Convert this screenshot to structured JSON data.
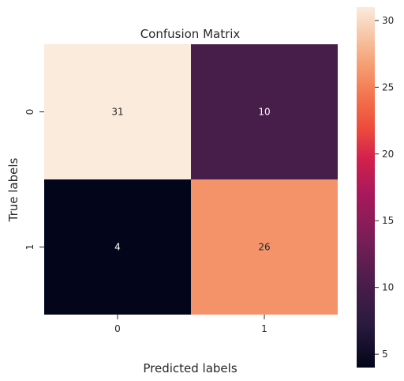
{
  "chart_data": {
    "type": "heatmap",
    "title": "Confusion Matrix",
    "xlabel": "Predicted labels",
    "ylabel": "True labels",
    "x_categories": [
      "0",
      "1"
    ],
    "y_categories": [
      "0",
      "1"
    ],
    "values": [
      [
        31,
        10
      ],
      [
        4,
        26
      ]
    ],
    "colormap": "rocket",
    "colorbar": {
      "range": [
        4,
        31
      ],
      "ticks": [
        5,
        10,
        15,
        20,
        25,
        30
      ],
      "tick_labels": [
        "5",
        "10",
        "15",
        "20",
        "25",
        "30"
      ]
    },
    "annotations": true,
    "grid": false
  }
}
